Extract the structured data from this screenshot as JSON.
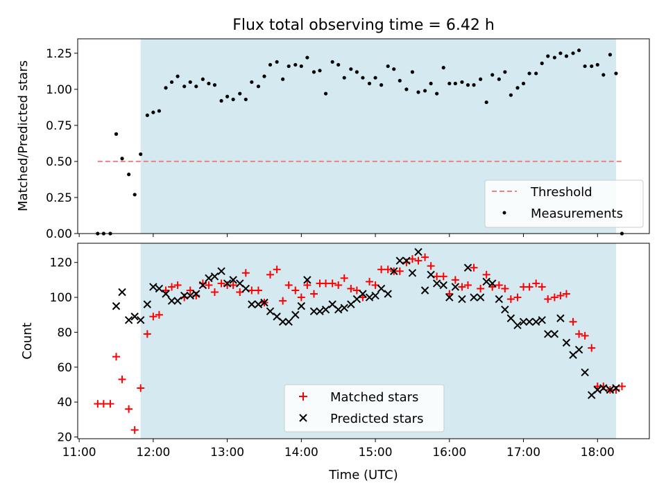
{
  "title": "Flux total observing time = 6.42 h",
  "colors": {
    "background_band": "#d4eaf0",
    "threshold": "#f08080",
    "measurements": "#000000",
    "matched": "#ff0000",
    "predicted": "#000000"
  },
  "chart_data": [
    {
      "type": "scatter",
      "panel": "top",
      "ylabel": "Matched/Predicted stars",
      "ylim": [
        0,
        1.35
      ],
      "yticks": [
        "0.00",
        "0.25",
        "0.50",
        "0.75",
        "1.00",
        "1.25"
      ],
      "ytick_values": [
        0,
        0.25,
        0.5,
        0.75,
        1.0,
        1.25
      ],
      "xlim_hours": [
        10.98,
        18.7
      ],
      "shaded_interval_hours": [
        11.83,
        18.25
      ],
      "threshold": {
        "name": "Threshold",
        "y": 0.5,
        "x_start": 11.25,
        "x_end": 18.33
      },
      "legend": [
        "Threshold",
        "Measurements"
      ],
      "legend_position": "lower-right",
      "series": [
        {
          "name": "Measurements",
          "x": [
            11.25,
            11.33,
            11.42,
            11.5,
            11.58,
            11.67,
            11.75,
            11.83,
            11.92,
            12.0,
            12.08,
            12.17,
            12.25,
            12.33,
            12.42,
            12.5,
            12.58,
            12.67,
            12.75,
            12.83,
            12.92,
            13.0,
            13.08,
            13.17,
            13.25,
            13.33,
            13.42,
            13.5,
            13.58,
            13.67,
            13.75,
            13.83,
            13.92,
            14.0,
            14.08,
            14.17,
            14.25,
            14.33,
            14.42,
            14.5,
            14.58,
            14.67,
            14.75,
            14.83,
            14.92,
            15.0,
            15.08,
            15.17,
            15.25,
            15.33,
            15.42,
            15.5,
            15.58,
            15.67,
            15.75,
            15.83,
            15.92,
            16.0,
            16.08,
            16.17,
            16.25,
            16.33,
            16.42,
            16.5,
            16.58,
            16.67,
            16.75,
            16.83,
            16.92,
            17.0,
            17.08,
            17.17,
            17.25,
            17.33,
            17.42,
            17.5,
            17.58,
            17.67,
            17.75,
            17.83,
            17.92,
            18.0,
            18.08,
            18.17,
            18.25,
            18.33
          ],
          "y": [
            0,
            0,
            0,
            0.69,
            0.52,
            0.41,
            0.27,
            0.55,
            0.82,
            0.84,
            0.85,
            1.01,
            1.05,
            1.09,
            1.02,
            1.05,
            1.02,
            1.07,
            1.04,
            1.03,
            0.92,
            0.95,
            0.93,
            0.97,
            0.93,
            1.05,
            1.02,
            1.09,
            1.17,
            1.19,
            1.07,
            1.16,
            1.17,
            1.16,
            1.22,
            1.12,
            1.13,
            0.97,
            1.19,
            1.17,
            1.08,
            1.14,
            1.12,
            1.08,
            1.04,
            1.08,
            1.03,
            1.16,
            1.14,
            1.06,
            1.0,
            1.12,
            0.98,
            0.99,
            1.04,
            0.97,
            1.15,
            1.04,
            1.04,
            1.05,
            1.03,
            1.03,
            1.07,
            0.91,
            1.1,
            1.07,
            1.12,
            0.96,
            1.01,
            1.04,
            1.11,
            1.11,
            1.18,
            1.23,
            1.22,
            1.25,
            1.23,
            1.25,
            1.27,
            1.16,
            1.16,
            1.17,
            1.1,
            1.24,
            1.11,
            0.0
          ]
        }
      ]
    },
    {
      "type": "scatter",
      "panel": "bottom",
      "xlabel": "Time (UTC)",
      "ylabel": "Count",
      "ylim": [
        19,
        131
      ],
      "yticks": [
        "20",
        "40",
        "60",
        "80",
        "100",
        "120"
      ],
      "ytick_values": [
        20,
        40,
        60,
        80,
        100,
        120
      ],
      "xlim_hours": [
        10.98,
        18.7
      ],
      "xticks": [
        "11:00",
        "12:00",
        "13:00",
        "14:00",
        "15:00",
        "16:00",
        "17:00",
        "18:00"
      ],
      "xtick_values": [
        11,
        12,
        13,
        14,
        15,
        16,
        17,
        18
      ],
      "shaded_interval_hours": [
        11.83,
        18.25
      ],
      "legend": [
        "Matched stars",
        "Predicted stars"
      ],
      "legend_position": "lower-center",
      "series": [
        {
          "name": "Matched stars",
          "x": [
            11.25,
            11.33,
            11.42,
            11.5,
            11.58,
            11.67,
            11.75,
            11.83,
            11.92,
            12.0,
            12.08,
            12.17,
            12.25,
            12.33,
            12.42,
            12.5,
            12.58,
            12.67,
            12.75,
            12.83,
            12.92,
            13.0,
            13.08,
            13.17,
            13.25,
            13.33,
            13.42,
            13.5,
            13.58,
            13.67,
            13.75,
            13.83,
            13.92,
            14.0,
            14.08,
            14.17,
            14.25,
            14.33,
            14.42,
            14.5,
            14.58,
            14.67,
            14.75,
            14.83,
            14.92,
            15.0,
            15.08,
            15.17,
            15.25,
            15.33,
            15.42,
            15.5,
            15.58,
            15.67,
            15.75,
            15.83,
            15.92,
            16.0,
            16.08,
            16.17,
            16.25,
            16.33,
            16.42,
            16.5,
            16.58,
            16.67,
            16.75,
            16.83,
            16.92,
            17.0,
            17.08,
            17.17,
            17.25,
            17.33,
            17.42,
            17.5,
            17.58,
            17.67,
            17.75,
            17.83,
            17.92,
            18.0,
            18.08,
            18.17,
            18.25,
            18.33
          ],
          "y": [
            39,
            39,
            39,
            66,
            53,
            36,
            24,
            48,
            79,
            89,
            90,
            104,
            106,
            107,
            100,
            104,
            101,
            108,
            107,
            103,
            108,
            107,
            107,
            103,
            114,
            104,
            104,
            97,
            113,
            116,
            98,
            107,
            104,
            100,
            107,
            102,
            108,
            108,
            108,
            107,
            111,
            105,
            104,
            100,
            109,
            107,
            116,
            116,
            115,
            115,
            120,
            122,
            121,
            123,
            118,
            112,
            112,
            102,
            110,
            106,
            107,
            117,
            105,
            113,
            106,
            107,
            105,
            99,
            100,
            106,
            106,
            108,
            106,
            99,
            100,
            101,
            102,
            86,
            79,
            78,
            71,
            49,
            49,
            47,
            47,
            49
          ],
          "marker": "plus"
        },
        {
          "name": "Predicted stars",
          "x": [
            11.5,
            11.58,
            11.67,
            11.75,
            11.83,
            11.92,
            12.0,
            12.08,
            12.17,
            12.25,
            12.33,
            12.42,
            12.5,
            12.58,
            12.67,
            12.75,
            12.83,
            12.92,
            13.0,
            13.08,
            13.17,
            13.25,
            13.33,
            13.42,
            13.5,
            13.58,
            13.67,
            13.75,
            13.83,
            13.92,
            14.0,
            14.08,
            14.17,
            14.25,
            14.33,
            14.42,
            14.5,
            14.58,
            14.67,
            14.75,
            14.83,
            14.92,
            15.0,
            15.08,
            15.17,
            15.25,
            15.33,
            15.42,
            15.5,
            15.58,
            15.67,
            15.75,
            15.83,
            15.92,
            16.0,
            16.08,
            16.17,
            16.25,
            16.33,
            16.42,
            16.5,
            16.58,
            16.67,
            16.75,
            16.83,
            16.92,
            17.0,
            17.08,
            17.17,
            17.25,
            17.33,
            17.42,
            17.5,
            17.58,
            17.67,
            17.75,
            17.83,
            17.92,
            18.0,
            18.08,
            18.17,
            18.25
          ],
          "y": [
            95,
            103,
            87,
            89,
            87,
            96,
            106,
            105,
            102,
            98,
            98,
            101,
            101,
            102,
            107,
            111,
            112,
            115,
            108,
            110,
            108,
            105,
            96,
            96,
            97,
            92,
            89,
            86,
            86,
            90,
            95,
            110,
            92,
            92,
            93,
            96,
            93,
            94,
            96,
            99,
            102,
            100,
            101,
            105,
            102,
            115,
            121,
            121,
            114,
            126,
            104,
            113,
            108,
            107,
            100,
            106,
            99,
            117,
            100,
            100,
            109,
            108,
            99,
            93,
            88,
            84,
            86,
            86,
            86,
            87,
            79,
            79,
            88,
            74,
            67,
            70,
            57,
            44,
            47,
            48,
            47,
            48
          ],
          "marker": "x"
        }
      ]
    }
  ]
}
